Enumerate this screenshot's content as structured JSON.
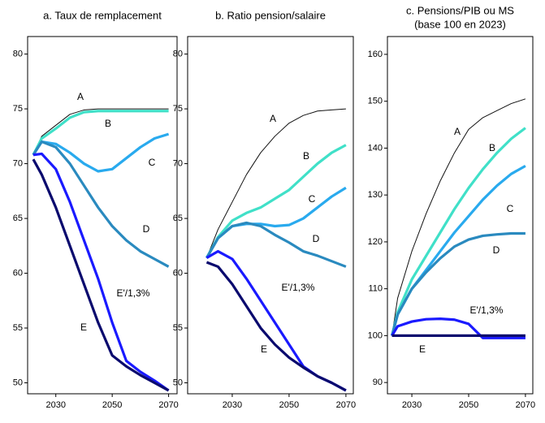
{
  "chart_data": [
    {
      "type": "line",
      "title": "a. Taux de remplacement",
      "x": [
        2022,
        2025,
        2030,
        2035,
        2040,
        2045,
        2050,
        2055,
        2060,
        2065,
        2070
      ],
      "xlim": [
        2020,
        2073
      ],
      "xticks": [
        2030,
        2050,
        2070
      ],
      "ylim": [
        49,
        81.6
      ],
      "yticks": [
        50,
        55,
        60,
        65,
        70,
        75,
        80
      ],
      "series": [
        {
          "name": "A",
          "color": "#111111",
          "values": [
            70.8,
            72.5,
            73.5,
            74.5,
            74.9,
            75,
            75,
            75,
            75,
            75,
            75
          ]
        },
        {
          "name": "B",
          "color": "#40e0c8",
          "values": [
            70.8,
            72.3,
            73.2,
            74.2,
            74.7,
            74.8,
            74.8,
            74.8,
            74.8,
            74.8,
            74.8
          ]
        },
        {
          "name": "C",
          "color": "#29aaee",
          "values": [
            70.8,
            72,
            71.8,
            71,
            70,
            69.3,
            69.5,
            70.5,
            71.5,
            72.3,
            72.7
          ]
        },
        {
          "name": "D",
          "color": "#2a8abf",
          "values": [
            70.8,
            72,
            71.5,
            70,
            68,
            66,
            64.3,
            63,
            62,
            61.3,
            60.6
          ]
        },
        {
          "name": "E'/1,3%",
          "color": "#1a1aff",
          "values": [
            70.8,
            70.9,
            69.5,
            66.5,
            63,
            59.5,
            55.5,
            52,
            51,
            50.2,
            49.3
          ]
        },
        {
          "name": "E",
          "color": "#0a0a6e",
          "values": [
            70.4,
            69,
            66,
            62.5,
            59,
            55.5,
            52.5,
            51.5,
            50.7,
            50,
            49.3
          ]
        }
      ]
    },
    {
      "type": "line",
      "title": "b. Ratio pension/salaire",
      "x": [
        2021,
        2025,
        2030,
        2035,
        2040,
        2045,
        2050,
        2055,
        2060,
        2065,
        2070
      ],
      "xlim": [
        2014.3,
        2072.6
      ],
      "xticks": [
        2030,
        2050,
        2070
      ],
      "ylim": [
        49,
        81.6
      ],
      "yticks": [
        50,
        55,
        60,
        65,
        70,
        75,
        80
      ],
      "series": [
        {
          "name": "A",
          "color": "#111111",
          "values": [
            61.4,
            64,
            66.5,
            69,
            71,
            72.5,
            73.7,
            74.4,
            74.8,
            74.9,
            75
          ]
        },
        {
          "name": "B",
          "color": "#40e0c8",
          "values": [
            61.4,
            63.3,
            64.8,
            65.5,
            66,
            66.8,
            67.6,
            68.8,
            70,
            71,
            71.7
          ]
        },
        {
          "name": "C",
          "color": "#29aaee",
          "values": [
            61.4,
            63.2,
            64.3,
            64.5,
            64.5,
            64.3,
            64.4,
            65,
            66,
            67,
            67.8
          ]
        },
        {
          "name": "D",
          "color": "#2a8abf",
          "values": [
            61.4,
            63.2,
            64.3,
            64.6,
            64.3,
            63.5,
            62.8,
            62,
            61.6,
            61.1,
            60.6
          ]
        },
        {
          "name": "E'/1,3%",
          "color": "#1a1aff",
          "values": [
            61.4,
            62,
            61.3,
            59.5,
            57.5,
            55.5,
            53.5,
            51.5,
            50.6,
            50,
            49.3
          ]
        },
        {
          "name": "E",
          "color": "#0a0a6e",
          "values": [
            61,
            60.6,
            59,
            57,
            55,
            53.5,
            52.3,
            51.4,
            50.6,
            50,
            49.3
          ]
        }
      ]
    },
    {
      "type": "line",
      "title": "c. Pensions/PIB ou MS",
      "subtitle": "(base 100 en 2023)",
      "x": [
        2023,
        2025,
        2030,
        2035,
        2040,
        2045,
        2050,
        2055,
        2060,
        2065,
        2070
      ],
      "xlim": [
        2021.4,
        2072.6
      ],
      "xticks": [
        2030,
        2050,
        2070
      ],
      "ylim": [
        87.6,
        163.8
      ],
      "yticks": [
        90,
        100,
        110,
        120,
        130,
        140,
        150,
        160
      ],
      "series": [
        {
          "name": "A",
          "color": "#111111",
          "values": [
            100,
            108,
            118,
            126,
            133,
            139,
            144,
            146.5,
            148,
            149.5,
            150.5
          ]
        },
        {
          "name": "B",
          "color": "#40e0c8",
          "values": [
            100,
            105,
            112,
            117,
            122,
            127,
            131.5,
            135.5,
            139,
            142,
            144.3
          ]
        },
        {
          "name": "C",
          "color": "#29aaee",
          "values": [
            100,
            104.5,
            110,
            114,
            118,
            122,
            125.5,
            129,
            132,
            134.5,
            136.2
          ]
        },
        {
          "name": "D",
          "color": "#2a8abf",
          "values": [
            100,
            104.5,
            110,
            113.5,
            116.5,
            119,
            120.5,
            121.3,
            121.6,
            121.8,
            121.8
          ]
        },
        {
          "name": "E'/1,3%",
          "color": "#1a1aff",
          "values": [
            100,
            102,
            103,
            103.5,
            103.6,
            103.4,
            102.5,
            99.5,
            99.5,
            99.5,
            99.5
          ]
        },
        {
          "name": "E",
          "color": "#0a0a6e",
          "values": [
            100,
            100,
            100,
            100,
            100,
            100,
            100,
            100,
            100,
            100,
            100
          ]
        }
      ]
    }
  ]
}
